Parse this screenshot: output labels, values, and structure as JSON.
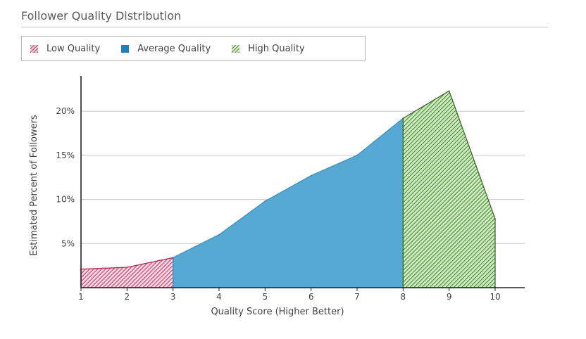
{
  "chart_data": {
    "type": "area",
    "title": "Follower Quality Distribution",
    "xlabel": "Quality Score (Higher Better)",
    "ylabel": "Estimated Percent of Followers",
    "x": [
      1,
      2,
      3,
      4,
      5,
      6,
      7,
      8,
      9,
      10
    ],
    "values": [
      2.1,
      2.3,
      3.4,
      6.0,
      9.8,
      12.7,
      15.0,
      19.2,
      22.3,
      7.8
    ],
    "xlim": [
      1,
      10
    ],
    "ylim": [
      0,
      24
    ],
    "xticks": [
      "1",
      "2",
      "3",
      "4",
      "5",
      "6",
      "7",
      "8",
      "9",
      "10"
    ],
    "yticks": [
      {
        "value": 5,
        "label": "5%"
      },
      {
        "value": 10,
        "label": "10%"
      },
      {
        "value": 15,
        "label": "15%"
      },
      {
        "value": 20,
        "label": "20%"
      }
    ],
    "grid": true,
    "legend_position": "top-left",
    "segments": [
      {
        "name": "Low Quality",
        "from": 1,
        "to": 3,
        "color": "#c9305e",
        "pattern": "hatch"
      },
      {
        "name": "Average Quality",
        "from": 3,
        "to": 8,
        "color": "#56a9d3",
        "pattern": "solid"
      },
      {
        "name": "High Quality",
        "from": 8,
        "to": 10,
        "color": "#6aab4c",
        "pattern": "hatch"
      }
    ]
  }
}
